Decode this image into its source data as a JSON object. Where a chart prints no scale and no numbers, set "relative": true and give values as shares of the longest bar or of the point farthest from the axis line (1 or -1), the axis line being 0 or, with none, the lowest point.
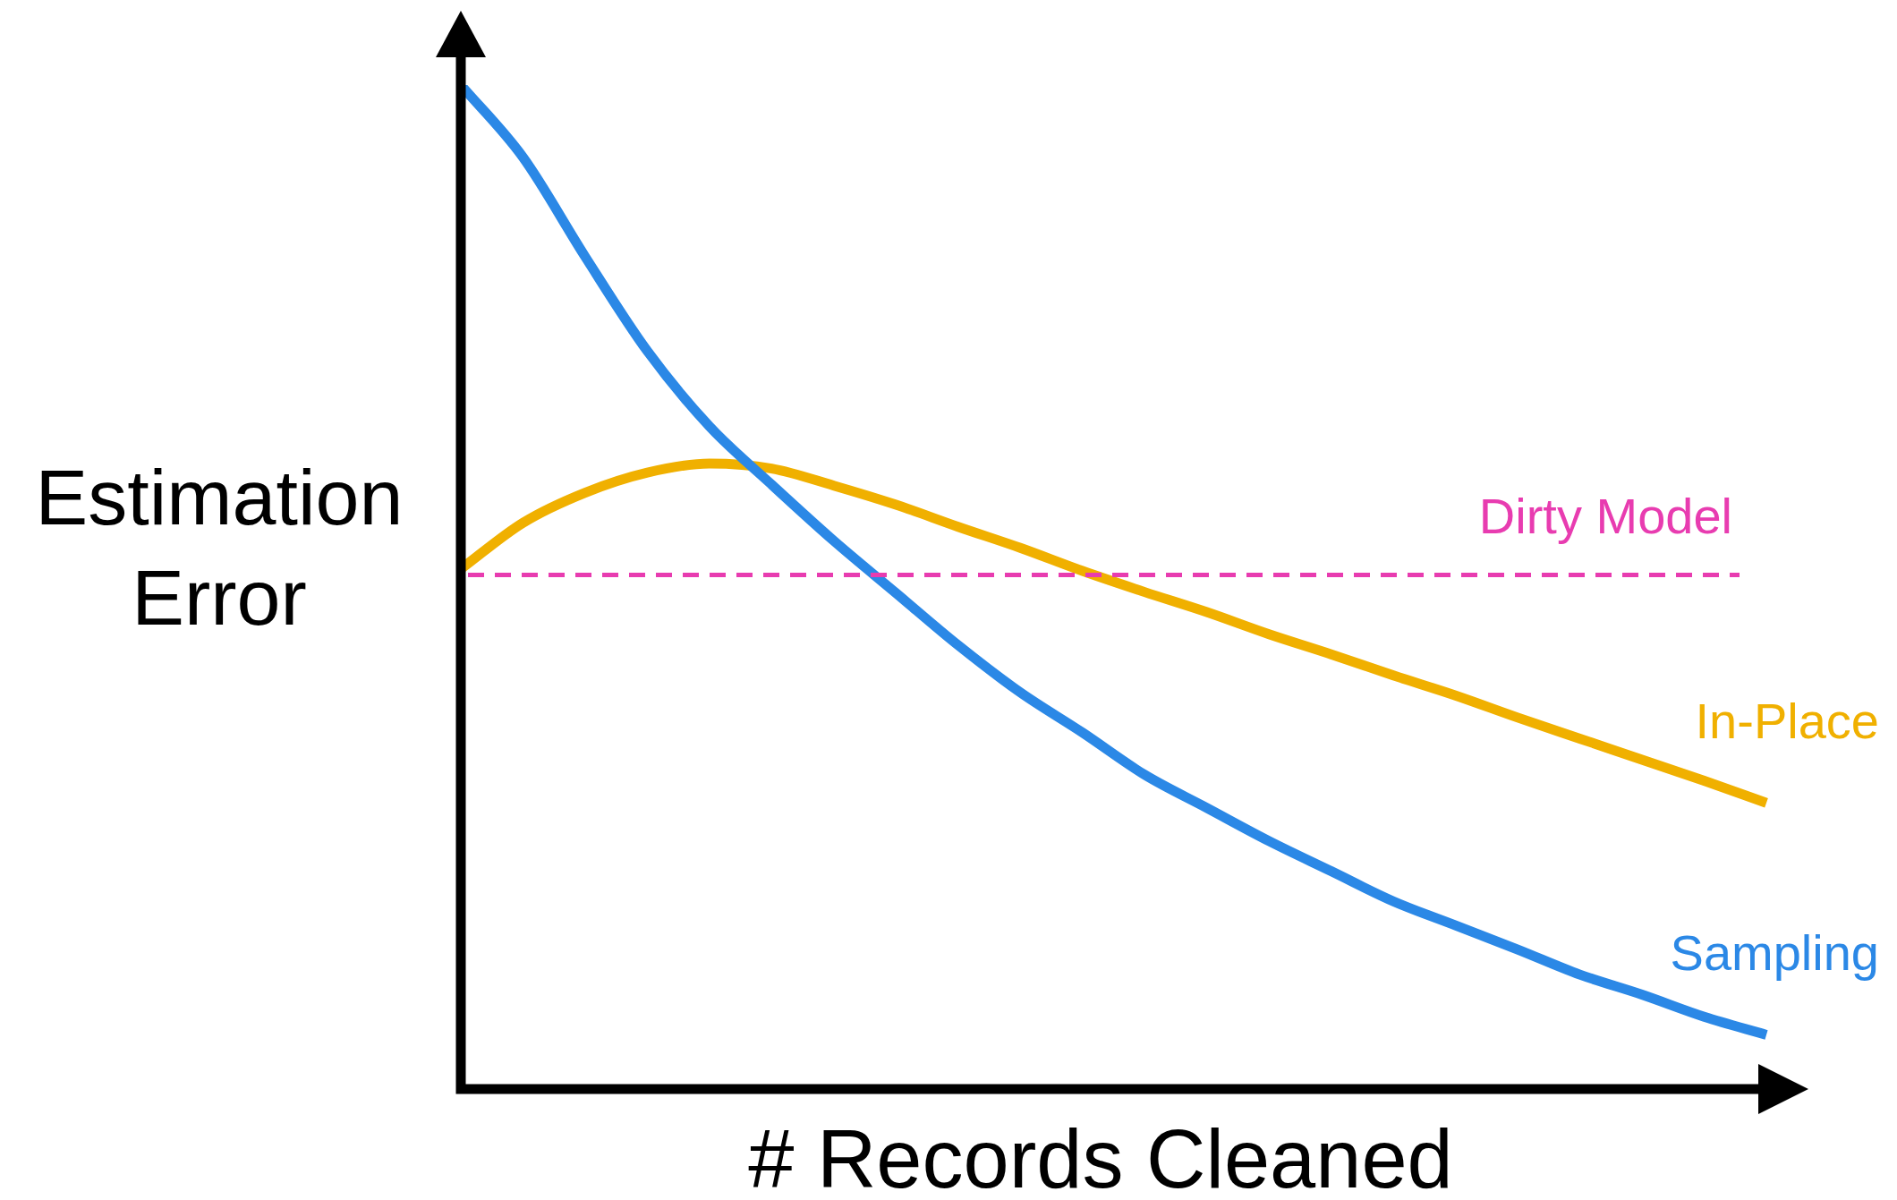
{
  "chart_data": {
    "type": "line",
    "xlabel": "# Records Cleaned",
    "ylabel": "Estimation Error",
    "relative": true,
    "marker": "none",
    "line_style": "solid",
    "categories": [
      null,
      null,
      null,
      null,
      null,
      null,
      null,
      null,
      null,
      null,
      null,
      null,
      null,
      null,
      null,
      null,
      null,
      null,
      null,
      null,
      null,
      null
    ],
    "series": [
      {
        "name": "Sampling",
        "color": "#2b88e6",
        "values": [
          1.0,
          0.928,
          0.829,
          0.735,
          0.66,
          0.602,
          0.546,
          0.494,
          0.442,
          0.395,
          0.355,
          0.313,
          0.28,
          0.247,
          0.217,
          0.187,
          0.163,
          0.139,
          0.114,
          0.094,
          0.072,
          0.054
        ]
      },
      {
        "name": "In-Place",
        "color": "#f0b000",
        "values": [
          0.518,
          0.564,
          0.594,
          0.614,
          0.623,
          0.618,
          0.601,
          0.582,
          0.56,
          0.539,
          0.516,
          0.495,
          0.475,
          0.453,
          0.433,
          0.412,
          0.392,
          0.37,
          0.349,
          0.328,
          0.307,
          0.285
        ]
      }
    ],
    "ref_lines": [
      {
        "axis": "y",
        "value": 0.512,
        "label": "Dirty Model",
        "color": "#e83cb0",
        "line_style": "dashed"
      }
    ]
  }
}
